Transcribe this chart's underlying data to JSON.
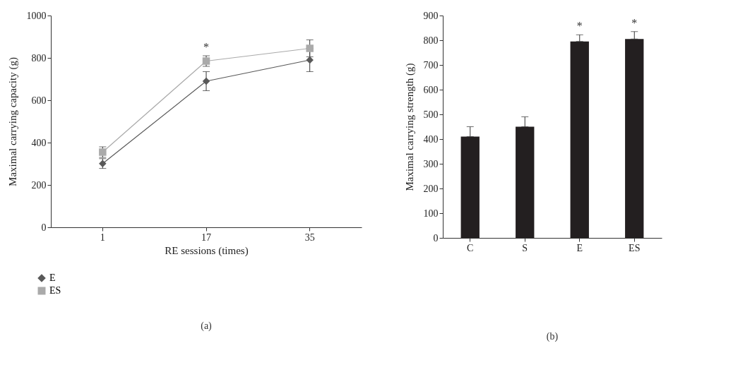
{
  "chart_data": [
    {
      "type": "line",
      "xlabel": "RE sessions (times)",
      "ylabel": "Maximal carrying capacity (g)",
      "categories": [
        "1",
        "17",
        "35"
      ],
      "ylim": [
        0,
        1000
      ],
      "yticks": [
        0,
        200,
        400,
        600,
        800,
        {
          "value": 1000,
          "label": "1000"
        }
      ],
      "grid": false,
      "legend": "bottom left",
      "series": [
        {
          "name": "E",
          "color": "#595959",
          "marker": "diamond",
          "values": [
            301,
            690,
            790
          ],
          "errors": [
            23,
            45,
            55
          ]
        },
        {
          "name": "ES",
          "color": "#aaaaaa",
          "marker": "square",
          "values": [
            355,
            785,
            845
          ],
          "errors": [
            25,
            25,
            40
          ]
        }
      ],
      "annotations": [
        {
          "text": "*",
          "x": "17",
          "y": 810
        },
        "(a)"
      ]
    },
    {
      "type": "bar",
      "ylabel": "Maximal carrying strength (g)",
      "categories": [
        "C",
        "S",
        "E",
        "ES"
      ],
      "ylim": [
        0,
        900
      ],
      "yticks": [
        0,
        100,
        200,
        300,
        400,
        500,
        600,
        700,
        800,
        900
      ],
      "grid": false,
      "values": [
        410,
        450,
        795,
        805
      ],
      "color": "#231f20",
      "errors": [
        [
          410,
          450
        ],
        [
          450,
          490
        ],
        [
          795,
          822
        ],
        [
          805,
          835
        ]
      ],
      "annotations": [
        {
          "text": "*",
          "x": "E",
          "y": 822
        },
        {
          "text": "*",
          "x": "ES",
          "y": 835
        },
        "(b)"
      ]
    }
  ]
}
